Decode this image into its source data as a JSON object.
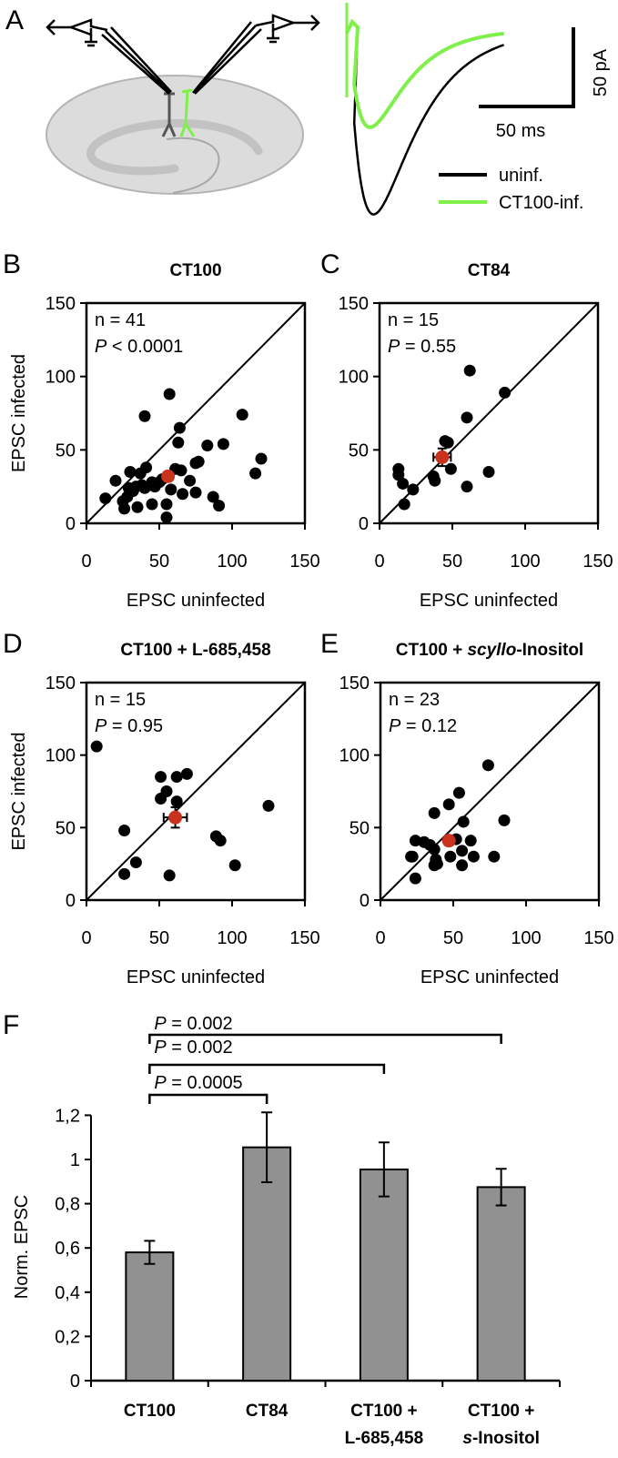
{
  "panel_a": {
    "label": "A",
    "legend": [
      {
        "name": "uninf.",
        "color": "#000000"
      },
      {
        "name": "CT100-inf.",
        "color": "#7ff04a"
      }
    ],
    "scale_time": "50 ms",
    "scale_current": "50 pA",
    "traces": [
      {
        "name": "uninf.",
        "color": "#000000",
        "peak_pA": 117,
        "tau_rise_ms": 8,
        "tau_decay_ms": 24
      },
      {
        "name": "CT100-inf.",
        "color": "#7ff04a",
        "peak_pA": 62,
        "tau_rise_ms": 7,
        "tau_decay_ms": 20
      }
    ]
  },
  "colors": {
    "dot": "#000000",
    "mean": "#c9321c",
    "bar": "#919191"
  },
  "chart_data": [
    {
      "type": "scatter",
      "panel": "B",
      "title": [
        "CT100"
      ],
      "n_label": "n = 41",
      "p_symbol": "P",
      "p_text": " < 0.0001",
      "xlabel": "EPSC uninfected",
      "ylabel": "EPSC infected",
      "xlim": [
        0,
        150
      ],
      "ylim": [
        0,
        150
      ],
      "xticks": [
        "0",
        "50",
        "100",
        "150"
      ],
      "yticks": [
        "0",
        "50",
        "100",
        "150"
      ],
      "points": [
        [
          57,
          88
        ],
        [
          40,
          73
        ],
        [
          107,
          74
        ],
        [
          64,
          65
        ],
        [
          63,
          55
        ],
        [
          83,
          53
        ],
        [
          94,
          54
        ],
        [
          120,
          44
        ],
        [
          116,
          34
        ],
        [
          77,
          42
        ],
        [
          75,
          41
        ],
        [
          30,
          35
        ],
        [
          41,
          38
        ],
        [
          37,
          34
        ],
        [
          20,
          29
        ],
        [
          61,
          37
        ],
        [
          65,
          36
        ],
        [
          71,
          29
        ],
        [
          13,
          17
        ],
        [
          29,
          24
        ],
        [
          34,
          25
        ],
        [
          40,
          24
        ],
        [
          45,
          28
        ],
        [
          50,
          28
        ],
        [
          58,
          23
        ],
        [
          66,
          20
        ],
        [
          75,
          21
        ],
        [
          25,
          15
        ],
        [
          28,
          18
        ],
        [
          26,
          10
        ],
        [
          35,
          11
        ],
        [
          45,
          13
        ],
        [
          55,
          13
        ],
        [
          87,
          18
        ],
        [
          91,
          12
        ],
        [
          55,
          4
        ],
        [
          44,
          26
        ],
        [
          47,
          25
        ],
        [
          32,
          22
        ],
        [
          52,
          30
        ],
        [
          38,
          26
        ]
      ],
      "mean": {
        "x": 56,
        "y": 32,
        "xerr": 3,
        "yerr": 3
      }
    },
    {
      "type": "scatter",
      "panel": "C",
      "title": [
        "CT84"
      ],
      "n_label": "n = 15",
      "p_symbol": "P",
      "p_text": " = 0.55",
      "xlabel": "EPSC uninfected",
      "ylabel": "",
      "xlim": [
        0,
        150
      ],
      "ylim": [
        0,
        150
      ],
      "xticks": [
        "0",
        "50",
        "100",
        "150"
      ],
      "yticks": [
        "0",
        "50",
        "100",
        "150"
      ],
      "points": [
        [
          62,
          104
        ],
        [
          86,
          89
        ],
        [
          60,
          72
        ],
        [
          45,
          56
        ],
        [
          47,
          55
        ],
        [
          49,
          37
        ],
        [
          75,
          35
        ],
        [
          60,
          25
        ],
        [
          13,
          37
        ],
        [
          13,
          33
        ],
        [
          16,
          27
        ],
        [
          23,
          23
        ],
        [
          17,
          13
        ],
        [
          37,
          32
        ],
        [
          38,
          29
        ]
      ],
      "mean": {
        "x": 43,
        "y": 45,
        "xerr": 6,
        "yerr": 6
      }
    },
    {
      "type": "scatter",
      "panel": "D",
      "title": [
        "CT100 + L-685,458"
      ],
      "n_label": "n = 15",
      "p_symbol": "P",
      "p_text": " = 0.95",
      "xlabel": "EPSC uninfected",
      "ylabel": "EPSC infected",
      "xlim": [
        0,
        150
      ],
      "ylim": [
        0,
        150
      ],
      "xticks": [
        "0",
        "50",
        "100",
        "150"
      ],
      "yticks": [
        "0",
        "50",
        "100",
        "150"
      ],
      "points": [
        [
          7,
          106
        ],
        [
          51,
          85
        ],
        [
          62,
          85
        ],
        [
          69,
          87
        ],
        [
          55,
          75
        ],
        [
          51,
          70
        ],
        [
          62,
          68
        ],
        [
          125,
          65
        ],
        [
          26,
          48
        ],
        [
          89,
          44
        ],
        [
          92,
          41
        ],
        [
          34,
          26
        ],
        [
          26,
          18
        ],
        [
          57,
          17
        ],
        [
          102,
          24
        ]
      ],
      "mean": {
        "x": 61,
        "y": 57,
        "xerr": 8,
        "yerr": 7
      }
    },
    {
      "type": "scatter",
      "panel": "E",
      "title": [
        "CT100 + ",
        "scyllo",
        "-Inositol"
      ],
      "n_label": "n = 23",
      "p_symbol": "P",
      "p_text": " = 0.12",
      "xlabel": "EPSC uninfected",
      "ylabel": "",
      "xlim": [
        0,
        150
      ],
      "ylim": [
        0,
        150
      ],
      "xticks": [
        "0",
        "50",
        "100",
        "150"
      ],
      "yticks": [
        "0",
        "50",
        "100",
        "150"
      ],
      "points": [
        [
          74,
          93
        ],
        [
          54,
          74
        ],
        [
          47,
          66
        ],
        [
          37,
          60
        ],
        [
          57,
          54
        ],
        [
          85,
          55
        ],
        [
          24,
          41
        ],
        [
          30,
          40
        ],
        [
          34,
          38
        ],
        [
          37,
          35
        ],
        [
          52,
          42
        ],
        [
          62,
          41
        ],
        [
          56,
          34
        ],
        [
          48,
          30
        ],
        [
          64,
          30
        ],
        [
          78,
          30
        ],
        [
          21,
          30
        ],
        [
          22,
          30
        ],
        [
          38,
          28
        ],
        [
          37,
          24
        ],
        [
          39,
          25
        ],
        [
          56,
          24
        ],
        [
          24,
          15
        ]
      ],
      "mean": {
        "x": 47,
        "y": 41,
        "xerr": 3,
        "yerr": 3
      }
    },
    {
      "type": "bar",
      "panel": "F",
      "ylabel": "Norm. EPSC",
      "ylim": [
        0,
        1.2
      ],
      "yticks": [
        "0",
        "0,2",
        "0,4",
        "0,6",
        "0,8",
        "1",
        "1,2"
      ],
      "categories": [
        [
          "CT100"
        ],
        [
          "CT84"
        ],
        [
          "CT100 +",
          "L-685,458"
        ],
        [
          "CT100 +",
          "s",
          "-Inositol"
        ]
      ],
      "values": [
        0.58,
        1.055,
        0.955,
        0.875
      ],
      "errors": [
        0.052,
        0.158,
        0.122,
        0.083
      ],
      "comparisons": [
        {
          "from": 0,
          "to": 3,
          "p_symbol": "P",
          "p_text": " = 0.002"
        },
        {
          "from": 0,
          "to": 2,
          "p_symbol": "P",
          "p_text": " = 0.002"
        },
        {
          "from": 0,
          "to": 1,
          "p_symbol": "P",
          "p_text": " = 0.0005"
        }
      ]
    }
  ]
}
